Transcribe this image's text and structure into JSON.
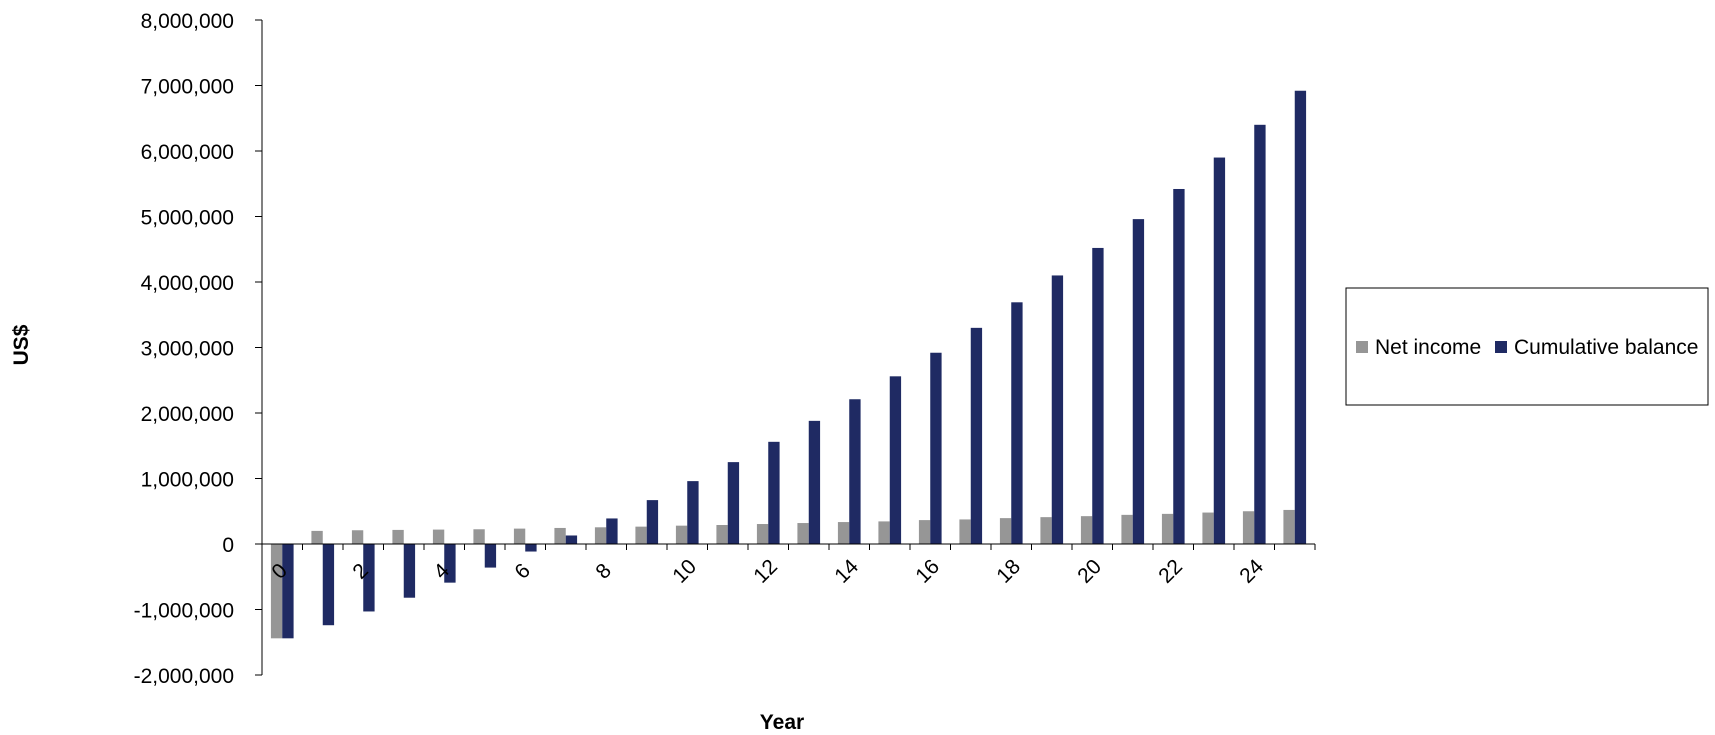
{
  "chart_data": {
    "type": "bar",
    "xlabel": "Year",
    "ylabel": "US$",
    "ylim": [
      -2000000,
      8000000
    ],
    "yticks": [
      8000000,
      7000000,
      6000000,
      5000000,
      4000000,
      3000000,
      2000000,
      1000000,
      0,
      -1000000,
      -2000000
    ],
    "ytick_labels": [
      "8,000,000",
      "7,000,000",
      "6,000,000",
      "5,000,000",
      "4,000,000",
      "3,000,000",
      "2,000,000",
      "1,000,000",
      "0",
      "-1,000,000",
      "-2,000,000"
    ],
    "negative_tick_color": "#ff0000",
    "categories": [
      0,
      1,
      2,
      3,
      4,
      5,
      6,
      7,
      8,
      9,
      10,
      11,
      12,
      13,
      14,
      15,
      16,
      17,
      18,
      19,
      20,
      21,
      22,
      23,
      24,
      25
    ],
    "xtick_labels": [
      "0",
      "2",
      "4",
      "6",
      "8",
      "10",
      "12",
      "14",
      "16",
      "18",
      "20",
      "22",
      "24"
    ],
    "legend_position": "right",
    "grid": false,
    "series": [
      {
        "name": "Net income",
        "color": "#969696",
        "values": [
          -1440000,
          200000,
          210000,
          215000,
          220000,
          225000,
          235000,
          245000,
          255000,
          265000,
          280000,
          290000,
          305000,
          320000,
          335000,
          345000,
          365000,
          375000,
          395000,
          410000,
          425000,
          445000,
          460000,
          480000,
          500000,
          520000
        ]
      },
      {
        "name": "Cumulative balance",
        "color": "#1f2a63",
        "values": [
          -1440000,
          -1240000,
          -1030000,
          -820000,
          -590000,
          -360000,
          -115000,
          130000,
          390000,
          670000,
          960000,
          1250000,
          1560000,
          1880000,
          2210000,
          2560000,
          2920000,
          3300000,
          3690000,
          4100000,
          4520000,
          4960000,
          5420000,
          5900000,
          6400000,
          6920000
        ]
      }
    ]
  }
}
